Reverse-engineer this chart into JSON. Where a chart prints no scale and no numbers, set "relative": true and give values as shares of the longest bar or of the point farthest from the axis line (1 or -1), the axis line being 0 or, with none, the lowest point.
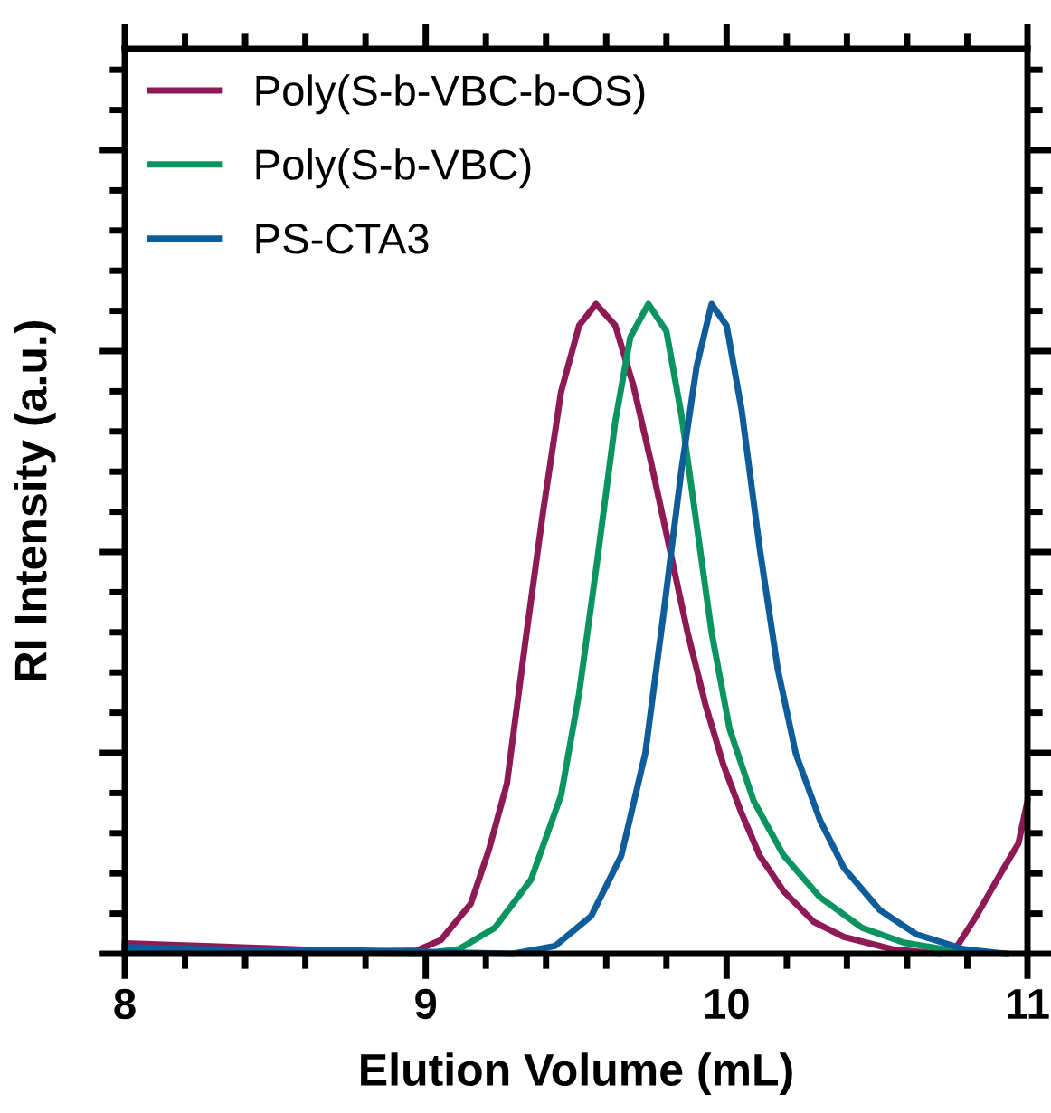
{
  "chart_data": {
    "type": "line",
    "relative": true,
    "xlabel": "Elution Volume (mL)",
    "ylabel": "RI Intensity (a.u.)",
    "xlim": [
      8,
      11
    ],
    "xticks": [
      8,
      9,
      10,
      11
    ],
    "tick_labels": "x",
    "grid": false,
    "legend": "top left",
    "marker": "none",
    "line_style": "solid",
    "series": [
      {
        "name": "Poly(S-b-VBC-b-OS)",
        "color": "#8e1a55",
        "x": [
          8.0,
          8.5,
          8.79,
          8.97,
          9.05,
          9.15,
          9.21,
          9.27,
          9.33,
          9.39,
          9.45,
          9.51,
          9.566,
          9.63,
          9.69,
          9.75,
          9.81,
          9.87,
          9.93,
          9.99,
          10.05,
          10.11,
          10.19,
          10.29,
          10.39,
          10.55,
          10.71,
          10.76,
          10.83,
          10.91,
          10.97,
          11.0
        ],
        "values": [
          0.016,
          0.008,
          0.003,
          0.005,
          0.021,
          0.077,
          0.16,
          0.262,
          0.476,
          0.68,
          0.865,
          0.967,
          1.0,
          0.967,
          0.875,
          0.754,
          0.625,
          0.495,
          0.383,
          0.29,
          0.216,
          0.151,
          0.096,
          0.049,
          0.026,
          0.007,
          0,
          0.007,
          0.058,
          0.123,
          0.17,
          0.235
        ]
      },
      {
        "name": "Poly(S-b-VBC)",
        "color": "#0b9460",
        "x": [
          8.0,
          8.5,
          8.99,
          9.11,
          9.23,
          9.35,
          9.45,
          9.51,
          9.57,
          9.63,
          9.68,
          9.74,
          9.8,
          9.85,
          9.9,
          9.95,
          10.01,
          10.09,
          10.19,
          10.31,
          10.45,
          10.59,
          10.75,
          10.93
        ],
        "values": [
          0.005,
          0.002,
          0,
          0.007,
          0.04,
          0.114,
          0.244,
          0.401,
          0.605,
          0.819,
          0.949,
          1.0,
          0.958,
          0.829,
          0.662,
          0.495,
          0.346,
          0.235,
          0.151,
          0.087,
          0.04,
          0.017,
          0.005,
          0
        ]
      },
      {
        "name": "PS-CTA3",
        "color": "#0f5c9a",
        "x": [
          8.0,
          8.5,
          8.79,
          9.29,
          9.43,
          9.55,
          9.65,
          9.73,
          9.79,
          9.85,
          9.9,
          9.95,
          10.0,
          10.05,
          10.11,
          10.17,
          10.23,
          10.31,
          10.39,
          10.51,
          10.63,
          10.79,
          10.93
        ],
        "values": [
          0.01,
          0.005,
          0.005,
          0,
          0.012,
          0.058,
          0.151,
          0.309,
          0.522,
          0.745,
          0.903,
          1.0,
          0.967,
          0.837,
          0.624,
          0.438,
          0.308,
          0.206,
          0.132,
          0.067,
          0.03,
          0.007,
          0
        ]
      }
    ]
  }
}
